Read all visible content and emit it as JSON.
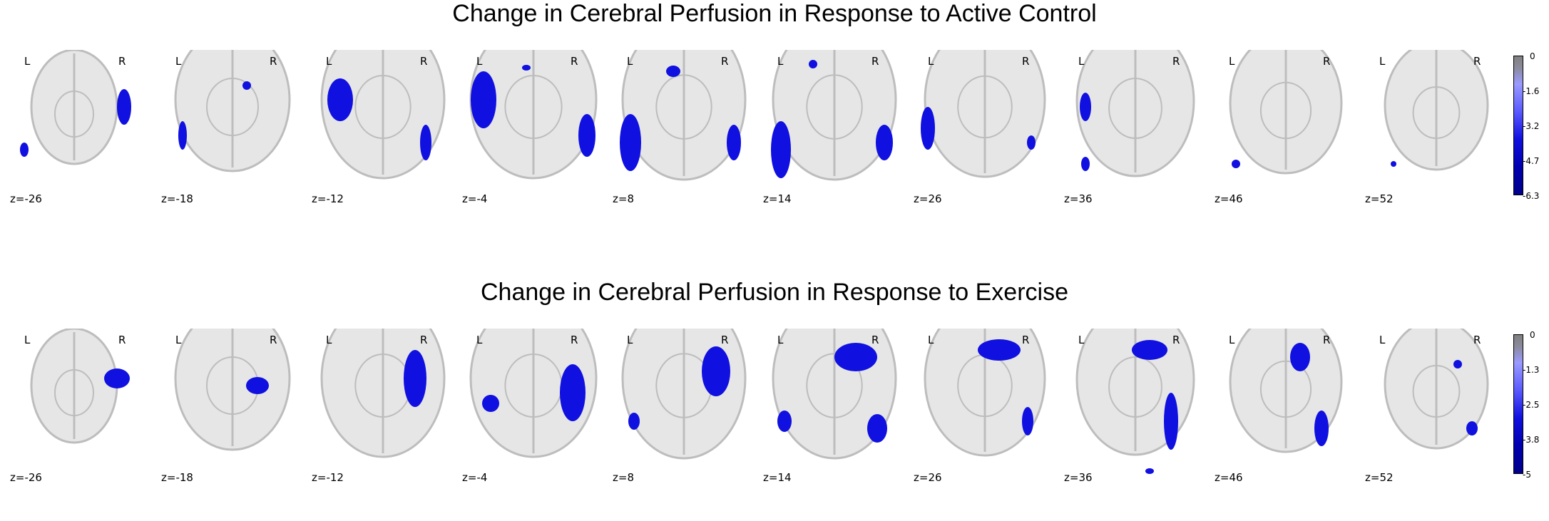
{
  "panels": [
    {
      "title": "Change in Cerebral Perfusion in Response to Active Control",
      "left_label": "L",
      "right_label": "R",
      "slices": [
        "z=-26",
        "z=-18",
        "z=-12",
        "z=-4",
        "z=8",
        "z=14",
        "z=26",
        "z=36",
        "z=46",
        "z=52"
      ],
      "colorbar_ticks": [
        "0",
        "-1.6",
        "-3.2",
        "-4.7",
        "-6.3"
      ]
    },
    {
      "title": "Change in Cerebral Perfusion in Response to Exercise",
      "left_label": "L",
      "right_label": "R",
      "slices": [
        "z=-26",
        "z=-18",
        "z=-12",
        "z=-4",
        "z=8",
        "z=14",
        "z=26",
        "z=36",
        "z=46",
        "z=52"
      ],
      "colorbar_ticks": [
        "0",
        "-1.3",
        "-2.5",
        "-3.8",
        "-5"
      ]
    }
  ],
  "colors": {
    "activation": "#1010e0",
    "brain_light": "#e6e6e6",
    "brain_mid": "#bdbdbd",
    "colorbar_top": "#808080",
    "colorbar_bottom": "#00008b"
  }
}
